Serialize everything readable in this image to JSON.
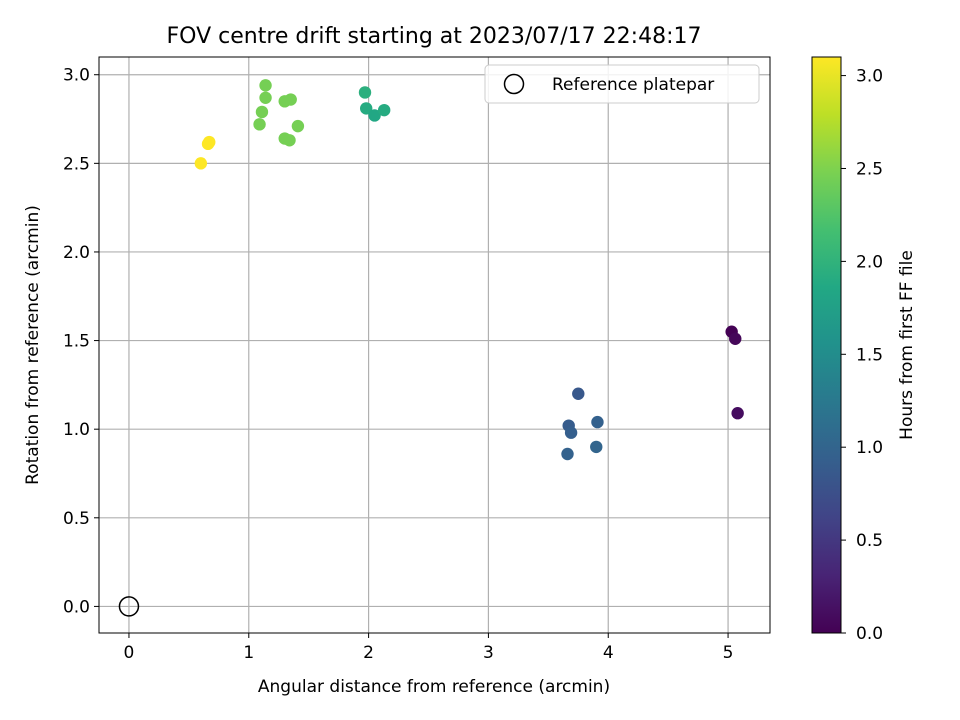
{
  "chart_data": {
    "type": "scatter",
    "title": "FOV centre drift starting at 2023/07/17 22:48:17",
    "xlabel": "Angular distance from reference (arcmin)",
    "ylabel": "Rotation from reference (arcmin)",
    "xlim": [
      -0.25,
      5.35
    ],
    "ylim": [
      -0.15,
      3.1
    ],
    "xticks": [
      0,
      1,
      2,
      3,
      4,
      5
    ],
    "yticks": [
      0.0,
      0.5,
      1.0,
      1.5,
      2.0,
      2.5,
      3.0
    ],
    "xtick_labels": [
      "0",
      "1",
      "2",
      "3",
      "4",
      "5"
    ],
    "ytick_labels": [
      "0.0",
      "0.5",
      "1.0",
      "1.5",
      "2.0",
      "2.5",
      "3.0"
    ],
    "grid": true,
    "legend": {
      "position": "top-right",
      "entries": [
        "Reference platepar"
      ]
    },
    "reference_point": {
      "x": 0,
      "y": 0,
      "label": "Reference platepar"
    },
    "colorbar": {
      "label": "Hours from first FF file",
      "range": [
        0.0,
        3.1
      ],
      "ticks": [
        0.0,
        0.5,
        1.0,
        1.5,
        2.0,
        2.5,
        3.0
      ],
      "tick_labels": [
        "0.0",
        "0.5",
        "1.0",
        "1.5",
        "2.0",
        "2.5",
        "3.0"
      ],
      "colormap": "viridis"
    },
    "points": [
      {
        "x": 5.03,
        "y": 1.55,
        "hours": 0.0
      },
      {
        "x": 5.06,
        "y": 1.51,
        "hours": 0.05
      },
      {
        "x": 5.08,
        "y": 1.09,
        "hours": 0.1
      },
      {
        "x": 3.75,
        "y": 1.2,
        "hours": 0.85
      },
      {
        "x": 3.67,
        "y": 1.02,
        "hours": 0.9
      },
      {
        "x": 3.69,
        "y": 0.98,
        "hours": 0.93
      },
      {
        "x": 3.91,
        "y": 1.04,
        "hours": 0.95
      },
      {
        "x": 3.66,
        "y": 0.86,
        "hours": 0.97
      },
      {
        "x": 3.9,
        "y": 0.9,
        "hours": 1.0
      },
      {
        "x": 1.97,
        "y": 2.9,
        "hours": 1.95
      },
      {
        "x": 1.98,
        "y": 2.81,
        "hours": 1.9
      },
      {
        "x": 2.05,
        "y": 2.77,
        "hours": 1.85
      },
      {
        "x": 2.13,
        "y": 2.8,
        "hours": 1.9
      },
      {
        "x": 1.14,
        "y": 2.94,
        "hours": 2.45
      },
      {
        "x": 1.14,
        "y": 2.87,
        "hours": 2.45
      },
      {
        "x": 1.11,
        "y": 2.79,
        "hours": 2.45
      },
      {
        "x": 1.09,
        "y": 2.72,
        "hours": 2.45
      },
      {
        "x": 1.3,
        "y": 2.85,
        "hours": 2.45
      },
      {
        "x": 1.35,
        "y": 2.86,
        "hours": 2.45
      },
      {
        "x": 1.3,
        "y": 2.64,
        "hours": 2.45
      },
      {
        "x": 1.34,
        "y": 2.63,
        "hours": 2.45
      },
      {
        "x": 1.41,
        "y": 2.71,
        "hours": 2.45
      },
      {
        "x": 0.66,
        "y": 2.61,
        "hours": 3.1
      },
      {
        "x": 0.67,
        "y": 2.62,
        "hours": 3.1
      },
      {
        "x": 0.6,
        "y": 2.5,
        "hours": 3.1
      }
    ]
  }
}
